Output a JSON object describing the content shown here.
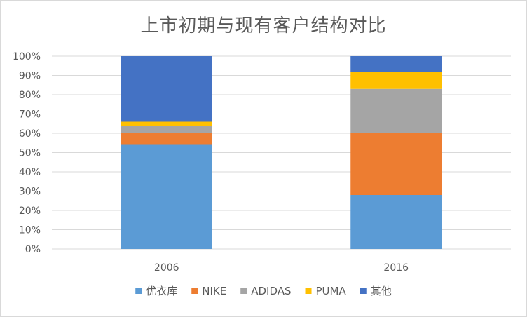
{
  "chart_data": {
    "type": "bar",
    "stacked": true,
    "percent": true,
    "title": "上市初期与现有客户结构对比",
    "categories": [
      "2006",
      "2016"
    ],
    "series": [
      {
        "name": "优衣库",
        "color": "#5b9bd5",
        "values": [
          54,
          28
        ]
      },
      {
        "name": "NIKE",
        "color": "#ed7d31",
        "values": [
          6,
          32
        ]
      },
      {
        "name": "ADIDAS",
        "color": "#a5a5a5",
        "values": [
          4,
          23
        ]
      },
      {
        "name": "PUMA",
        "color": "#ffc000",
        "values": [
          2,
          9
        ]
      },
      {
        "name": "其他",
        "color": "#4472c4",
        "values": [
          34,
          8
        ]
      }
    ],
    "ylim": [
      0,
      100
    ],
    "yticks": [
      "0%",
      "10%",
      "20%",
      "30%",
      "40%",
      "50%",
      "60%",
      "70%",
      "80%",
      "90%",
      "100%"
    ],
    "grid": true,
    "legend": "bottom"
  }
}
